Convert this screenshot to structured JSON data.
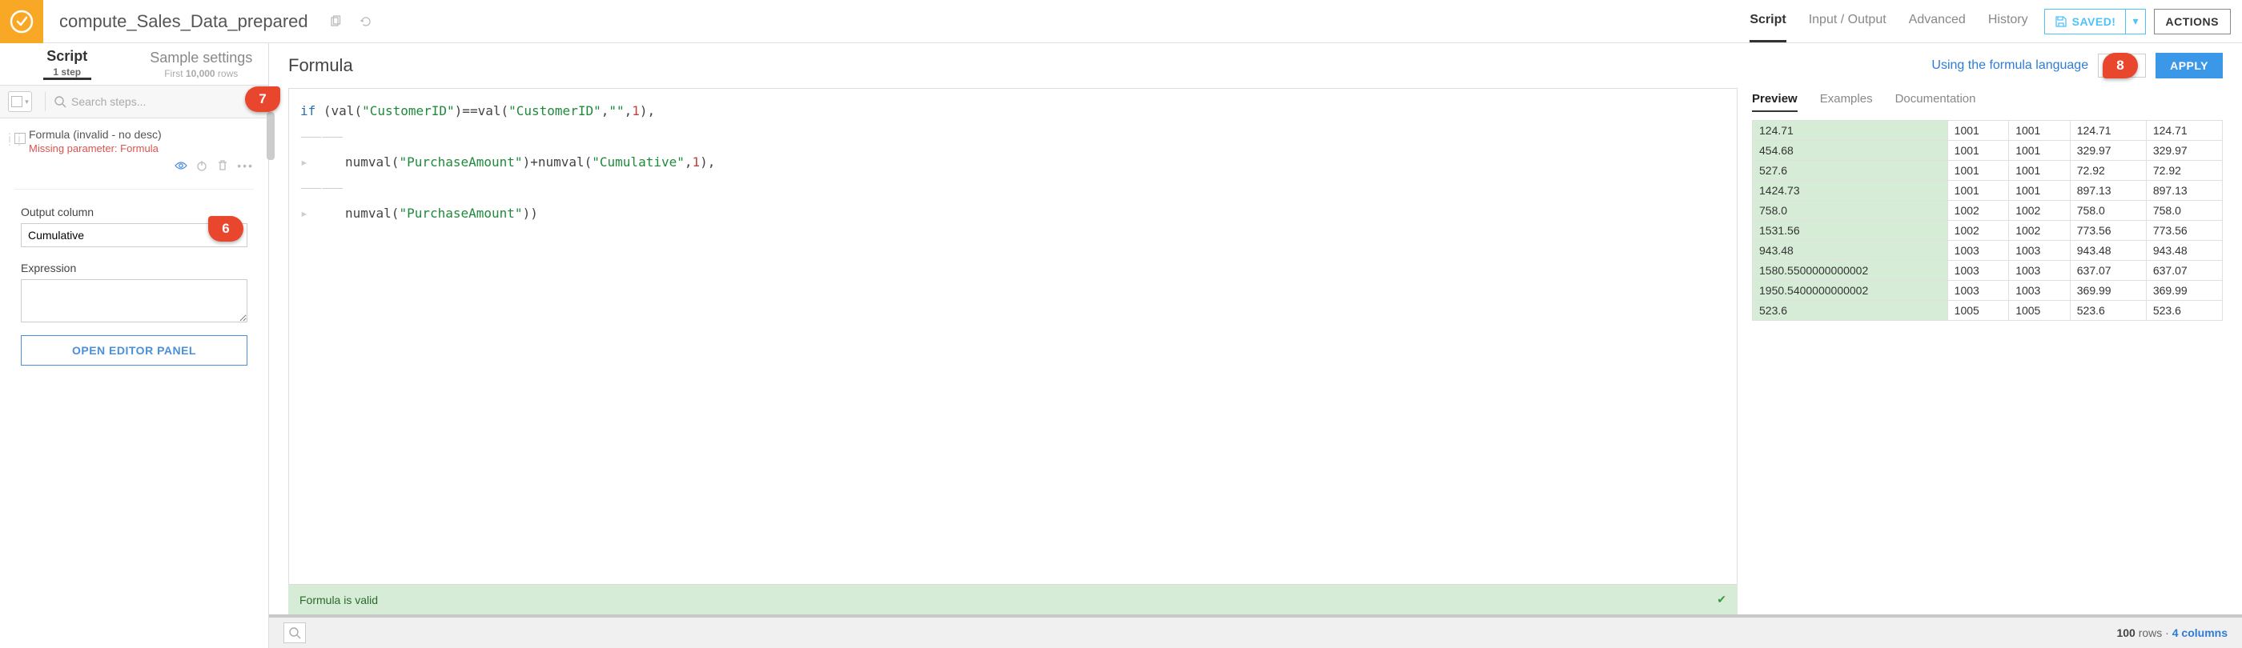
{
  "header": {
    "title": "compute_Sales_Data_prepared",
    "nav_tabs": [
      {
        "label": "Script",
        "active": true
      },
      {
        "label": "Input / Output",
        "active": false
      },
      {
        "label": "Advanced",
        "active": false
      },
      {
        "label": "History",
        "active": false
      }
    ],
    "saved_label": "SAVED!",
    "actions_label": "ACTIONS"
  },
  "left": {
    "tabs": [
      {
        "label": "Script",
        "sub_prefix": "1",
        "sub_suffix": " step",
        "active": true
      },
      {
        "label": "Sample settings",
        "sub_prefix_plain": "First ",
        "sub_bold": "10,000",
        "sub_suffix": " rows",
        "active": false
      }
    ],
    "search_placeholder": "Search steps...",
    "step": {
      "title": "Formula (invalid - no desc)",
      "error": "Missing parameter: Formula"
    },
    "output_label": "Output column",
    "output_value": "Cumulative",
    "expression_label": "Expression",
    "open_editor": "OPEN EDITOR PANEL"
  },
  "formula": {
    "title": "Formula",
    "link": "Using the formula language",
    "apply": "APPLY",
    "code": {
      "line1": {
        "kw": "if",
        "p1": " (",
        "fn1": "val",
        "p2": "(",
        "s1": "\"CustomerID\"",
        "p3": ")==",
        "fn2": "val",
        "p4": "(",
        "s2": "\"CustomerID\"",
        "p5": ",",
        "s3": "\"\"",
        "p6": ",",
        "n1": "1",
        "p7": "),"
      },
      "line2": {
        "fn1": "numval",
        "p1": "(",
        "s1": "\"PurchaseAmount\"",
        "p2": ")+",
        "fn2": "numval",
        "p3": "(",
        "s2": "\"Cumulative\"",
        "p4": ",",
        "n1": "1",
        "p5": "),"
      },
      "line3": {
        "fn1": "numval",
        "p1": "(",
        "s1": "\"PurchaseAmount\"",
        "p2": "))"
      }
    },
    "validity": "Formula is valid"
  },
  "preview": {
    "tabs": [
      {
        "label": "Preview",
        "active": true
      },
      {
        "label": "Examples",
        "active": false
      },
      {
        "label": "Documentation",
        "active": false
      }
    ],
    "rows": [
      [
        "124.71",
        "1001",
        "1001",
        "124.71",
        "124.71"
      ],
      [
        "454.68",
        "1001",
        "1001",
        "329.97",
        "329.97"
      ],
      [
        "527.6",
        "1001",
        "1001",
        "72.92",
        "72.92"
      ],
      [
        "1424.73",
        "1001",
        "1001",
        "897.13",
        "897.13"
      ],
      [
        "758.0",
        "1002",
        "1002",
        "758.0",
        "758.0"
      ],
      [
        "1531.56",
        "1002",
        "1002",
        "773.56",
        "773.56"
      ],
      [
        "943.48",
        "1003",
        "1003",
        "943.48",
        "943.48"
      ],
      [
        "1580.5500000000002",
        "1003",
        "1003",
        "637.07",
        "637.07"
      ],
      [
        "1950.5400000000002",
        "1003",
        "1003",
        "369.99",
        "369.99"
      ],
      [
        "523.6",
        "1005",
        "1005",
        "523.6",
        "523.6"
      ]
    ]
  },
  "bottom": {
    "rows_count": "100",
    "rows_label": " rows",
    "sep": "  ·  ",
    "cols_count": "4",
    "cols_label": " columns"
  },
  "callouts": {
    "c6": "6",
    "c7": "7",
    "c8": "8"
  },
  "colors": {
    "accent_orange": "#f9a825",
    "accent_blue": "#3b97e8",
    "link_blue": "#2e7cd6",
    "valid_bg": "#d6ecd6",
    "callout": "#e8472e"
  }
}
